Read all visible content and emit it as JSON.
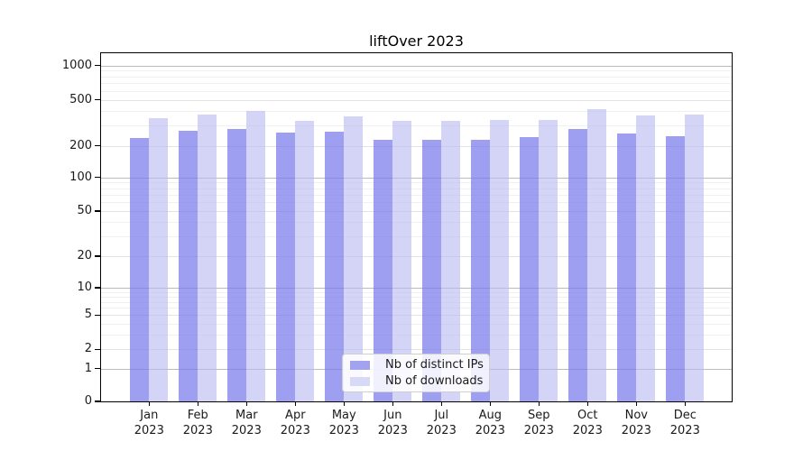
{
  "chart_data": {
    "type": "bar",
    "title": "liftOver 2023",
    "xlabel": "",
    "ylabel": "",
    "y_scale": "log-like (symlog), 0 at baseline",
    "grid": true,
    "legend_position": "lower center",
    "categories": [
      {
        "month": "Jan",
        "year": "2023"
      },
      {
        "month": "Feb",
        "year": "2023"
      },
      {
        "month": "Mar",
        "year": "2023"
      },
      {
        "month": "Apr",
        "year": "2023"
      },
      {
        "month": "May",
        "year": "2023"
      },
      {
        "month": "Jun",
        "year": "2023"
      },
      {
        "month": "Jul",
        "year": "2023"
      },
      {
        "month": "Aug",
        "year": "2023"
      },
      {
        "month": "Sep",
        "year": "2023"
      },
      {
        "month": "Oct",
        "year": "2023"
      },
      {
        "month": "Nov",
        "year": "2023"
      },
      {
        "month": "Dec",
        "year": "2023"
      }
    ],
    "series": [
      {
        "name": "Nb of distinct IPs",
        "color": "#a2a2ef",
        "bar_color": "rgba(122,122,235,0.72)",
        "values": [
          235,
          268,
          280,
          262,
          265,
          226,
          227,
          227,
          239,
          278,
          257,
          244
        ]
      },
      {
        "name": "Nb of downloads",
        "color": "#d8d8f7",
        "bar_color": "rgba(186,186,242,0.62)",
        "values": [
          347,
          373,
          402,
          327,
          361,
          330,
          332,
          334,
          334,
          415,
          368,
          372
        ]
      }
    ],
    "y_axis": {
      "ticks": [
        {
          "label": "1000",
          "value": 1000
        },
        {
          "label": "500",
          "value": 500
        },
        {
          "label": "200",
          "value": 200
        },
        {
          "label": "100",
          "value": 100
        },
        {
          "label": "50",
          "value": 50
        },
        {
          "label": "20",
          "value": 20
        },
        {
          "label": "10",
          "value": 10
        },
        {
          "label": "5",
          "value": 5
        },
        {
          "label": "2",
          "value": 2
        },
        {
          "label": "1",
          "value": 1
        },
        {
          "label": "0",
          "value": 0
        }
      ],
      "minor_ticks": [
        3,
        4,
        6,
        7,
        8,
        9,
        30,
        40,
        60,
        70,
        80,
        90,
        300,
        400,
        600,
        700,
        800,
        900
      ]
    }
  }
}
